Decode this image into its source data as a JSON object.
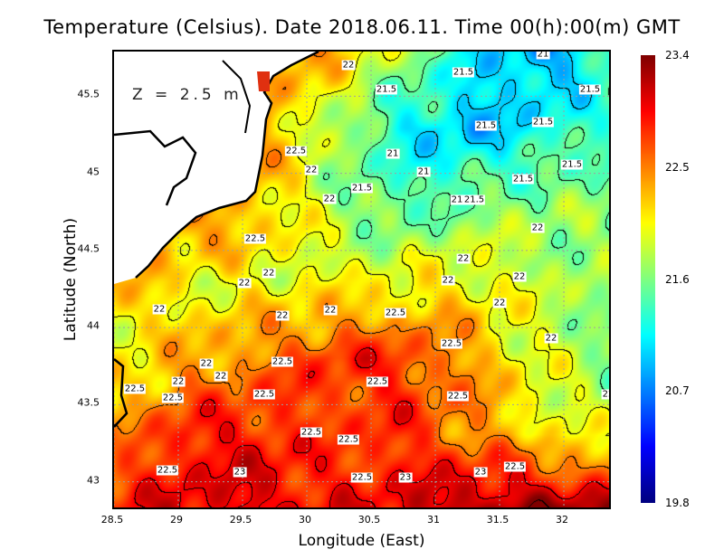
{
  "title": "Temperature (Celsius). Date 2018.06.11. Time 00(h):00(m)  GMT",
  "depth_label": "Z = 2.5 m",
  "x_axis": {
    "label": "Longitude (East)",
    "ticks": [
      "28.5",
      "29",
      "29.5",
      "30",
      "30.5",
      "31",
      "31.5",
      "32"
    ],
    "range": [
      28.5,
      32.38
    ]
  },
  "y_axis": {
    "label": "Latitude (North)",
    "ticks": [
      "43",
      "43.5",
      "44",
      "44.5",
      "45",
      "45.5"
    ],
    "range": [
      42.81,
      45.79
    ]
  },
  "colorbar": {
    "ticks": [
      "23.4",
      "22.5",
      "21.6",
      "20.7",
      "19.8"
    ],
    "min": 19.8,
    "max": 23.4,
    "colormap": "jet"
  },
  "contour_interval": 0.5,
  "contour_labels": [
    "22",
    "21.5",
    "21.5",
    "21",
    "21.5",
    "21.5",
    "21.5",
    "22.5",
    "21",
    "22",
    "21",
    "21.5",
    "21.5",
    "21.5",
    "22",
    "21",
    "21.5",
    "22",
    "22.5",
    "22",
    "22",
    "22",
    "22",
    "22",
    "22",
    "22",
    "22",
    "22",
    "22.5",
    "22.5",
    "22",
    "22.5",
    "22",
    "22",
    "22",
    "22.5",
    "22.5",
    "22.5",
    "22.5",
    "22.5",
    "22",
    "22.5",
    "22.5",
    "22.5",
    "23",
    "22.5",
    "23",
    "23",
    "22.5"
  ],
  "colors": {
    "land": "#ffffff",
    "coastline": "#000000",
    "grid": "#a0a0a0"
  }
}
